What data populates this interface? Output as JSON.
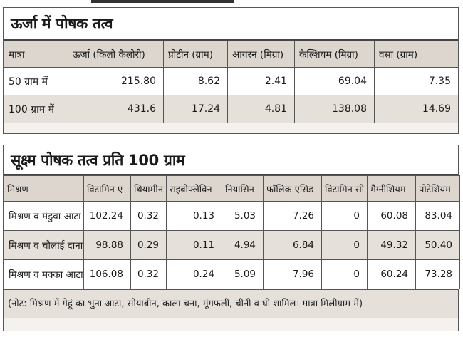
{
  "panel1": {
    "title": "ऊर्जा में पोषक तत्व",
    "headers": [
      "मात्रा",
      "ऊर्जा (किलो कैलोरी)",
      "प्रोटीन (ग्राम)",
      "आयरन (मिग्रा)",
      "कैल्शियम (मिग्रा)",
      "वसा (ग्राम)"
    ],
    "rows": [
      [
        "50 ग्राम में",
        "215.80",
        "8.62",
        "2.41",
        "69.04",
        "7.35"
      ],
      [
        "100 ग्राम में",
        "431.6",
        "17.24",
        "4.81",
        "138.08",
        "14.69"
      ]
    ]
  },
  "panel2": {
    "title": "सूक्ष्म पोषक तत्व प्रति 100 ग्राम",
    "headers": [
      "मिश्रण",
      "विटामिन ए",
      "थियामीन",
      "राइबोफ्लेविन",
      "नियासिन",
      "फॉलिक एसिड",
      "विटामिन सी",
      "मैग्नीशियम",
      "पोटेशियम"
    ],
    "rows": [
      [
        "मिश्रण व मंडुवा आटा",
        "102.24",
        "0.32",
        "0.13",
        "5.03",
        "7.26",
        "0",
        "60.08",
        "83.04"
      ],
      [
        "मिश्रण व चौलाई दाना",
        "98.88",
        "0.29",
        "0.11",
        "4.94",
        "6.84",
        "0",
        "49.32",
        "50.40"
      ],
      [
        "मिश्रण व मक्का आटा",
        "106.08",
        "0.32",
        "0.24",
        "5.09",
        "7.96",
        "0",
        "60.24",
        "73.28"
      ]
    ],
    "note": "(नोट: मिश्रण में गेहूं का भुना आटा, सोयाबीन, काला चना, मूंगफली, चीनी व घी शामिल। मात्रा मिलीग्राम में)"
  }
}
